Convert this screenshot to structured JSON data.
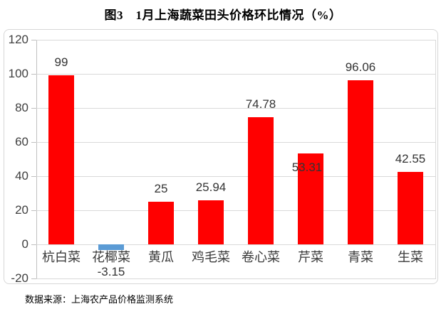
{
  "title": "图3　1月上海蔬菜田头价格环比情况（%）",
  "source_note": "数据来源：上海农产品价格监测系统",
  "chart_data": {
    "type": "bar",
    "title": "图3　1月上海蔬菜田头价格环比情况（%）",
    "categories": [
      "杭白菜",
      "花椰菜",
      "黄瓜",
      "鸡毛菜",
      "卷心菜",
      "芹菜",
      "青菜",
      "生菜"
    ],
    "values": [
      99,
      -3.15,
      25,
      25.94,
      74.78,
      53.31,
      96.06,
      42.55
    ],
    "data_labels": [
      "99",
      "-3.15",
      "25",
      "25.94",
      "74.78",
      "53.31",
      "96.06",
      "42.55"
    ],
    "label_positions": [
      "above",
      "below",
      "above",
      "above",
      "above",
      "inside",
      "above",
      "above"
    ],
    "xlabel": "",
    "ylabel": "",
    "ylim": [
      -20,
      120
    ],
    "yticks": [
      120,
      100,
      80,
      60,
      40,
      20,
      0,
      -20
    ],
    "grid": true,
    "legend": "none",
    "colors": {
      "positive_bar": "#ff0000",
      "negative_bar": "#5b9bd5",
      "gridline": "#d9d9d9",
      "axis_line": "#bfbfbf",
      "label_text": "#3f3f3f"
    }
  }
}
